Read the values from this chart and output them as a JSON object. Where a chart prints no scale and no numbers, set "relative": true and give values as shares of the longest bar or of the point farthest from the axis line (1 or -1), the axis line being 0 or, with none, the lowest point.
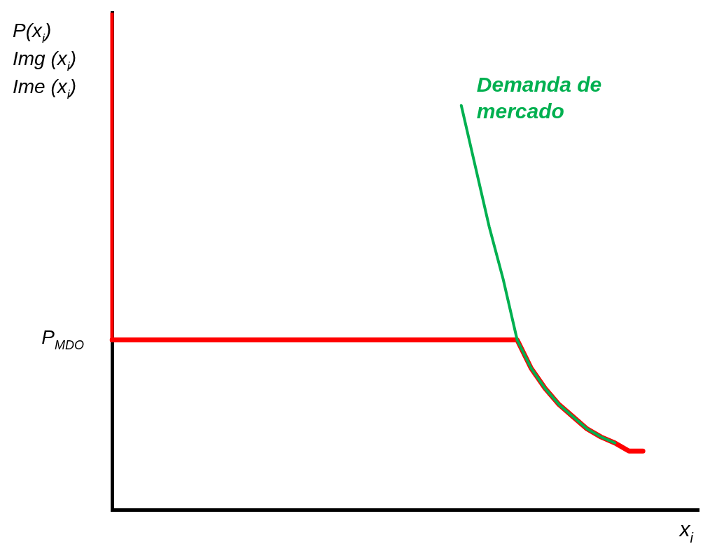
{
  "chart_data": {
    "type": "line",
    "relative": true,
    "ylabel": "P(x$_{i}$)\nImg (x$_{i}$)\nIme (x$_{i}$)",
    "xlabel": "x$_{i}$",
    "categories": [
      null,
      null,
      null,
      null,
      null,
      null,
      null,
      null,
      null,
      null,
      null,
      null,
      null,
      null,
      null,
      null,
      null,
      null,
      null,
      null,
      null,
      null,
      null,
      null,
      null,
      null,
      null,
      null,
      null,
      null,
      null,
      null,
      null,
      null,
      null,
      null,
      null,
      null,
      null,
      null,
      null,
      null,
      null
    ],
    "series": [
      {
        "name": "Demanda de mercado",
        "color": "#00b050",
        "values": [
          null,
          null,
          null,
          null,
          null,
          null,
          null,
          null,
          null,
          null,
          null,
          null,
          null,
          null,
          null,
          null,
          null,
          null,
          null,
          null,
          null,
          null,
          null,
          null,
          null,
          1.0,
          0.85,
          0.7,
          0.57,
          0.42,
          0.35,
          0.3,
          0.26,
          0.23,
          0.2,
          0.18,
          0.165,
          null,
          null,
          null,
          null,
          null,
          null
        ]
      },
      {
        "name": "P$_{MDO}$",
        "color": "#ff0000",
        "values": [
          0.42,
          0.42,
          0.42,
          0.42,
          0.42,
          0.42,
          0.42,
          0.42,
          0.42,
          0.42,
          0.42,
          0.42,
          0.42,
          0.42,
          0.42,
          0.42,
          0.42,
          0.42,
          0.42,
          0.42,
          0.42,
          0.42,
          0.42,
          0.42,
          0.42,
          0.42,
          0.42,
          0.42,
          0.42,
          0.42,
          0.35,
          0.3,
          0.26,
          0.23,
          0.2,
          0.18,
          0.165,
          0.145,
          0.145,
          null,
          null,
          null,
          null
        ]
      }
    ],
    "legend": false
  }
}
